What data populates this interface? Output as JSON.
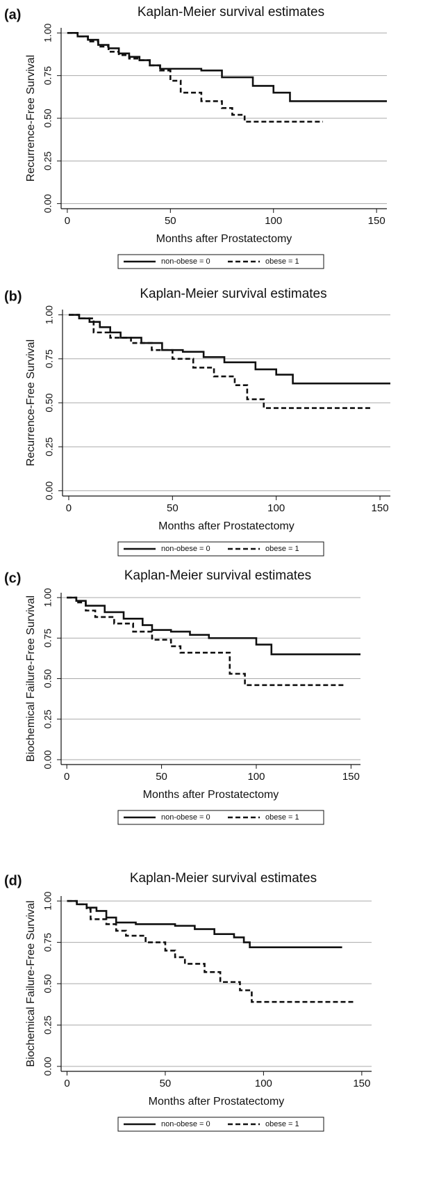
{
  "chart_data": [
    {
      "type": "step",
      "panel_label": "(a)",
      "title": "Kaplan-Meier survival estimates",
      "x_label": "Months after Prostatectomy",
      "y_label": "Recurrence-Free Survival",
      "xlim": [
        -3,
        155
      ],
      "ylim": [
        -0.03,
        1.03
      ],
      "xticks": [
        0,
        50,
        100,
        150
      ],
      "yticks": [
        {
          "value": 0,
          "label": "0.00"
        },
        {
          "value": 0.25,
          "label": "0.25"
        },
        {
          "value": 0.5,
          "label": "0.50"
        },
        {
          "value": 0.75,
          "label": "0.75"
        },
        {
          "value": 1,
          "label": "1.00"
        }
      ],
      "grid": true,
      "series": [
        {
          "name": "non-obese = 0",
          "color": "#111111",
          "line_style": "solid",
          "x": [
            0,
            5,
            10,
            15,
            20,
            25,
            30,
            35,
            40,
            45,
            65,
            75,
            90,
            100,
            108,
            155
          ],
          "values": [
            1,
            0.98,
            0.96,
            0.93,
            0.91,
            0.88,
            0.86,
            0.84,
            0.81,
            0.79,
            0.78,
            0.74,
            0.69,
            0.65,
            0.6,
            0.6
          ]
        },
        {
          "name": "obese = 1",
          "color": "#111111",
          "line_style": "dashed",
          "x": [
            0,
            5,
            10,
            15,
            20,
            25,
            30,
            35,
            40,
            45,
            50,
            55,
            65,
            75,
            80,
            86,
            124
          ],
          "values": [
            1,
            0.98,
            0.95,
            0.92,
            0.89,
            0.87,
            0.85,
            0.84,
            0.81,
            0.78,
            0.72,
            0.65,
            0.6,
            0.56,
            0.52,
            0.48,
            0.48
          ]
        }
      ]
    },
    {
      "type": "step",
      "panel_label": "(b)",
      "title": "Kaplan-Meier survival estimates",
      "x_label": "Months after Prostatectomy",
      "y_label": "Recurrence-Free Survival",
      "xlim": [
        -3,
        155
      ],
      "ylim": [
        -0.03,
        1.03
      ],
      "xticks": [
        0,
        50,
        100,
        150
      ],
      "yticks": [
        {
          "value": 0,
          "label": "0.00"
        },
        {
          "value": 0.25,
          "label": "0.25"
        },
        {
          "value": 0.5,
          "label": "0.50"
        },
        {
          "value": 0.75,
          "label": "0.75"
        },
        {
          "value": 1,
          "label": "1.00"
        }
      ],
      "grid": true,
      "series": [
        {
          "name": "non-obese = 0",
          "color": "#111111",
          "line_style": "solid",
          "x": [
            0,
            5,
            10,
            15,
            20,
            25,
            35,
            45,
            55,
            65,
            75,
            90,
            100,
            108,
            155
          ],
          "values": [
            1,
            0.98,
            0.96,
            0.93,
            0.9,
            0.87,
            0.84,
            0.8,
            0.79,
            0.76,
            0.73,
            0.69,
            0.66,
            0.61,
            0.61
          ]
        },
        {
          "name": "obese = 1",
          "color": "#111111",
          "line_style": "dashed",
          "x": [
            0,
            5,
            12,
            20,
            30,
            40,
            50,
            60,
            70,
            80,
            86,
            94,
            146
          ],
          "values": [
            1,
            0.98,
            0.9,
            0.87,
            0.84,
            0.8,
            0.75,
            0.7,
            0.65,
            0.6,
            0.52,
            0.47,
            0.47
          ]
        }
      ]
    },
    {
      "type": "step",
      "panel_label": "(c)",
      "title": "Kaplan-Meier survival estimates",
      "x_label": "Months after Prostatectomy",
      "y_label": "Biochemical Failure-Free Survival",
      "xlim": [
        -3,
        155
      ],
      "ylim": [
        -0.03,
        1.03
      ],
      "xticks": [
        0,
        50,
        100,
        150
      ],
      "yticks": [
        {
          "value": 0,
          "label": "0.00"
        },
        {
          "value": 0.25,
          "label": "0.25"
        },
        {
          "value": 0.5,
          "label": "0.50"
        },
        {
          "value": 0.75,
          "label": "0.75"
        },
        {
          "value": 1,
          "label": "1.00"
        }
      ],
      "grid": true,
      "series": [
        {
          "name": "non-obese = 0",
          "color": "#111111",
          "line_style": "solid",
          "x": [
            0,
            5,
            10,
            20,
            30,
            40,
            45,
            55,
            65,
            75,
            100,
            108,
            155
          ],
          "values": [
            1,
            0.98,
            0.95,
            0.91,
            0.87,
            0.83,
            0.8,
            0.79,
            0.77,
            0.75,
            0.71,
            0.65,
            0.65
          ]
        },
        {
          "name": "obese = 1",
          "color": "#111111",
          "line_style": "dashed",
          "x": [
            0,
            5,
            10,
            15,
            25,
            35,
            45,
            55,
            60,
            86,
            94,
            147
          ],
          "values": [
            1,
            0.97,
            0.92,
            0.88,
            0.84,
            0.79,
            0.74,
            0.7,
            0.66,
            0.53,
            0.46,
            0.46
          ]
        }
      ]
    },
    {
      "type": "step",
      "panel_label": "(d)",
      "title": "Kaplan-Meier survival estimates",
      "x_label": "Months after Prostatectomy",
      "y_label": "Biochemical Failure-Free Survival",
      "xlim": [
        -3,
        155
      ],
      "ylim": [
        -0.03,
        1.03
      ],
      "xticks": [
        0,
        50,
        100,
        150
      ],
      "yticks": [
        {
          "value": 0,
          "label": "0.00"
        },
        {
          "value": 0.25,
          "label": "0.25"
        },
        {
          "value": 0.5,
          "label": "0.50"
        },
        {
          "value": 0.75,
          "label": "0.75"
        },
        {
          "value": 1,
          "label": "1.00"
        }
      ],
      "grid": true,
      "series": [
        {
          "name": "non-obese = 0",
          "color": "#111111",
          "line_style": "solid",
          "x": [
            0,
            5,
            10,
            15,
            20,
            25,
            35,
            55,
            65,
            75,
            85,
            90,
            93,
            140
          ],
          "values": [
            1,
            0.98,
            0.96,
            0.94,
            0.9,
            0.87,
            0.86,
            0.85,
            0.83,
            0.8,
            0.78,
            0.75,
            0.72,
            0.72
          ]
        },
        {
          "name": "obese = 1",
          "color": "#111111",
          "line_style": "dashed",
          "x": [
            0,
            5,
            10,
            12,
            20,
            25,
            30,
            40,
            50,
            55,
            60,
            70,
            78,
            88,
            94,
            147
          ],
          "values": [
            1,
            0.98,
            0.95,
            0.89,
            0.86,
            0.82,
            0.79,
            0.75,
            0.7,
            0.66,
            0.62,
            0.57,
            0.51,
            0.46,
            0.39,
            0.39
          ]
        }
      ]
    }
  ]
}
